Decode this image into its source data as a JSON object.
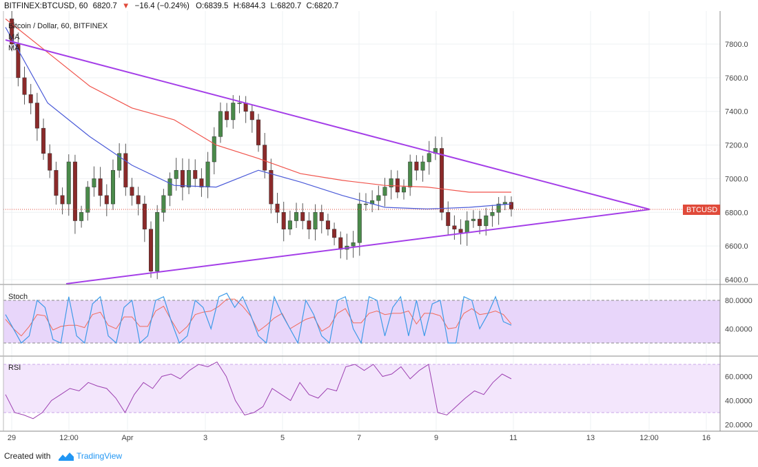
{
  "header": {
    "symbol": "BITFINEX:BTCUSD, 60",
    "last": "6820.7",
    "change": "▼",
    "change_text": "−16.4 (−0.24%)",
    "open": "O:6839.5",
    "high": "H:6844.3",
    "low": "L:6820.7",
    "close": "C:6820.7"
  },
  "legend": {
    "name": "Bitcoin / Dollar, 60, BITFINEX",
    "ma1": "MA",
    "ma2": "MA"
  },
  "price_label": "BTCUSD",
  "colors": {
    "bull": "#4a8a4a",
    "bear": "#8b2a2a",
    "ma_red": "#f0524a",
    "ma_blue": "#4a5ad8",
    "trend": "#a43ee8",
    "band": "#e8d6fa",
    "stoch_k": "#3d9ae8",
    "stoch_d": "#f06a5a",
    "rsi": "#9c3fb0",
    "label_bg": "#e04a3a"
  },
  "footer": {
    "created_with": "Created with",
    "brand": "TradingView"
  },
  "chart_data": [
    {
      "type": "candlestick",
      "title": "Bitcoin / Dollar, 60, BITFINEX",
      "x_ticks": [
        "29",
        "12:00",
        "Apr",
        "3",
        "5",
        "7",
        "9",
        "11",
        "13",
        "12:00",
        "16"
      ],
      "y_ticks": [
        "7800.0",
        "7600.0",
        "7400.0",
        "7200.0",
        "7000.0",
        "6800.0",
        "6600.0",
        "6400.0"
      ],
      "ylim": [
        6400,
        7800
      ],
      "last_price": 6820.7,
      "closes_approx": [
        7950,
        7800,
        7600,
        7500,
        7450,
        7300,
        7150,
        7050,
        6900,
        6850,
        7100,
        6750,
        6800,
        6950,
        7000,
        6900,
        6850,
        7050,
        7150,
        6950,
        6900,
        6850,
        6700,
        6450,
        6800,
        6900,
        7000,
        7050,
        6950,
        7050,
        7000,
        6950,
        7100,
        7250,
        7400,
        7350,
        7450,
        7450,
        7400,
        7350,
        7200,
        7050,
        6850,
        6800,
        6700,
        6750,
        6800,
        6750,
        6700,
        6800,
        6750,
        6700,
        6650,
        6580,
        6600,
        6620,
        6850,
        6850,
        6870,
        6900,
        6950,
        7000,
        6920,
        6950,
        7100,
        7050,
        7100,
        7150,
        7180,
        6800,
        6720,
        6700,
        6680,
        6750,
        6760,
        6720,
        6780,
        6800,
        6850,
        6860,
        6820
      ],
      "moving_averages": [
        {
          "name": "MA",
          "values_approx": [
            7950,
            7750,
            7550,
            7420,
            7350,
            7200,
            7120,
            7030,
            6990,
            6960,
            6950,
            6920,
            6920
          ]
        },
        {
          "name": "MA",
          "values_approx": [
            7900,
            7450,
            7250,
            7080,
            6960,
            6950,
            7050,
            6980,
            6900,
            6830,
            6820,
            6830,
            6850
          ]
        }
      ],
      "annotations": [
        "triangle: descending resistance from ~7880 to apex ~6815",
        "ascending support from ~6380 to apex ~6815"
      ]
    },
    {
      "type": "line",
      "title": "Stoch",
      "y_ticks": [
        "80.0000",
        "40.0000"
      ],
      "band": [
        20,
        80
      ],
      "series": [
        {
          "values_approx": [
            60,
            40,
            20,
            30,
            80,
            70,
            25,
            20,
            85,
            30,
            20,
            75,
            85,
            30,
            20,
            70,
            80,
            20,
            30,
            80,
            85,
            50,
            20,
            30,
            80,
            70,
            40,
            85,
            90,
            70,
            85,
            60,
            30,
            20,
            85,
            60,
            40,
            20,
            80,
            60,
            30,
            20,
            80,
            85,
            40,
            20,
            85,
            80,
            30,
            70,
            85,
            30,
            80,
            30,
            75,
            80,
            20,
            20,
            85,
            80,
            40,
            60,
            85,
            50,
            45
          ]
        }
      ]
    },
    {
      "type": "line",
      "title": "RSI",
      "y_ticks": [
        "60.0000",
        "40.0000",
        "20.0000"
      ],
      "band": [
        30,
        70
      ],
      "series": [
        {
          "values_approx": [
            45,
            30,
            28,
            25,
            30,
            40,
            45,
            50,
            48,
            55,
            52,
            50,
            42,
            30,
            45,
            55,
            50,
            60,
            62,
            58,
            65,
            70,
            68,
            72,
            60,
            40,
            28,
            30,
            35,
            50,
            45,
            40,
            55,
            45,
            42,
            50,
            48,
            68,
            70,
            65,
            70,
            60,
            62,
            68,
            58,
            65,
            70,
            30,
            28,
            35,
            42,
            48,
            45,
            55,
            62,
            58
          ]
        }
      ]
    }
  ]
}
